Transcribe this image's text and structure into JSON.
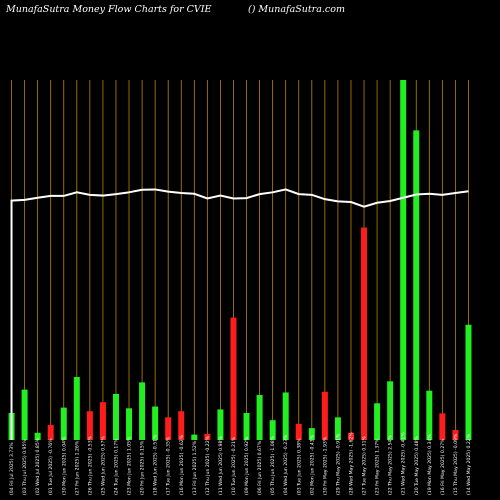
{
  "header": {
    "title_left": "MunafaSutra  Money Flow  Charts for CVIE",
    "title_right": "() MunafaSutra.com"
  },
  "chart_data": {
    "type": "bar",
    "grid": true,
    "grid_color": "#b8860b",
    "colors": {
      "up": "#22ee22",
      "down": "#ff1c1c",
      "line": "#ffffff",
      "background": "#000000"
    },
    "ylim": [
      0,
      100
    ],
    "x": [
      "(04 Fri Jul 2025) 3.73%",
      "(03 Thu Jul 2025) 0.95%",
      "(02 Wed Jul 2025) 0.85%",
      "(01 Tue Jul 2025) -0.76%",
      "(30 Mon Jun 2025) 0.04%",
      "(27 Fri Jun 2025) 1.26%",
      "(26 Thu Jun 2025) -0.53%",
      "(25 Wed Jun 2025) 0.57%",
      "(24 Tue Jun 2025) 0.17%",
      "(23 Mon Jun 2025) 1.05%",
      "(20 Fri Jun 2025) 0.15%",
      "(18 Wed Jun 2025) -0.51%",
      "(17 Tue Jun 2025) -0.35%",
      "(16 Mon Jun 2025) -0.62%",
      "(13 Fri Jun 2025) 1.52%",
      "(12 Thu Jun 2025) -0.22%",
      "(11 Wed Jun 2025) 0.98%",
      "(10 Tue Jun 2025) -0.21%",
      "(09 Mon Jun 2025) 0.92%",
      "(06 Fri Jun 2025) 0.67%",
      "(05 Thu Jun 2025) -1.08%",
      "(04 Wed Jun 2025) -0.23%",
      "(03 Tue Jun 2025) 0.38%",
      "(02 Mon Jun 2025) -0.43%",
      "(30 Fri May 2025) -1.93%",
      "(29 Thu May 2025) -0.91%",
      "(28 Wed May 2025) -1.62%",
      "(27 Tue May 2025) 0.31%",
      "(23 Fri May 2025) 1.37%",
      "(22 Thu May 2025) 2.54%",
      "(21 Wed May 2025) -0.41%",
      "(20 Tue May 2025) 0.48%",
      "(19 Mon May 2025) 0.34%",
      "(16 Fri May 2025) 0.27%",
      "(15 Thu May 2025) -0.09%",
      "(14 Wed May 2025) 0.22%"
    ],
    "series": [
      {
        "values": [
          7.5,
          14,
          2,
          4.2,
          9,
          17.5,
          8,
          10.5,
          12.8,
          8.8,
          16,
          9.3,
          6.3,
          8,
          1.5,
          1.7,
          8.5,
          34,
          7.5,
          12.5,
          5.5,
          13.2,
          4.5,
          3.3,
          13.4,
          6.3,
          2,
          59,
          10.2,
          16.3,
          100,
          86,
          13.7,
          7.4,
          2.8,
          32
        ],
        "direction": [
          "up",
          "up",
          "up",
          "down",
          "up",
          "up",
          "down",
          "down",
          "up",
          "up",
          "up",
          "up",
          "down",
          "down",
          "up",
          "down",
          "up",
          "down",
          "up",
          "up",
          "up",
          "up",
          "down",
          "up",
          "down",
          "up",
          "down",
          "down",
          "up",
          "up",
          "up",
          "up",
          "up",
          "down",
          "down",
          "up"
        ]
      },
      {
        "values": [
          66.5,
          66.7,
          67.3,
          67.8,
          67.8,
          68.8,
          68.1,
          67.9,
          68.3,
          68.8,
          69.5,
          69.6,
          69,
          68.6,
          68.4,
          67.1,
          67.9,
          67.1,
          67.2,
          68.3,
          68.8,
          69.6,
          68.3,
          68.1,
          66.9,
          66.3,
          66.1,
          64.8,
          65.9,
          66.4,
          67.3,
          68.2,
          68.4,
          68.1,
          68.6,
          69.1
        ]
      }
    ]
  }
}
